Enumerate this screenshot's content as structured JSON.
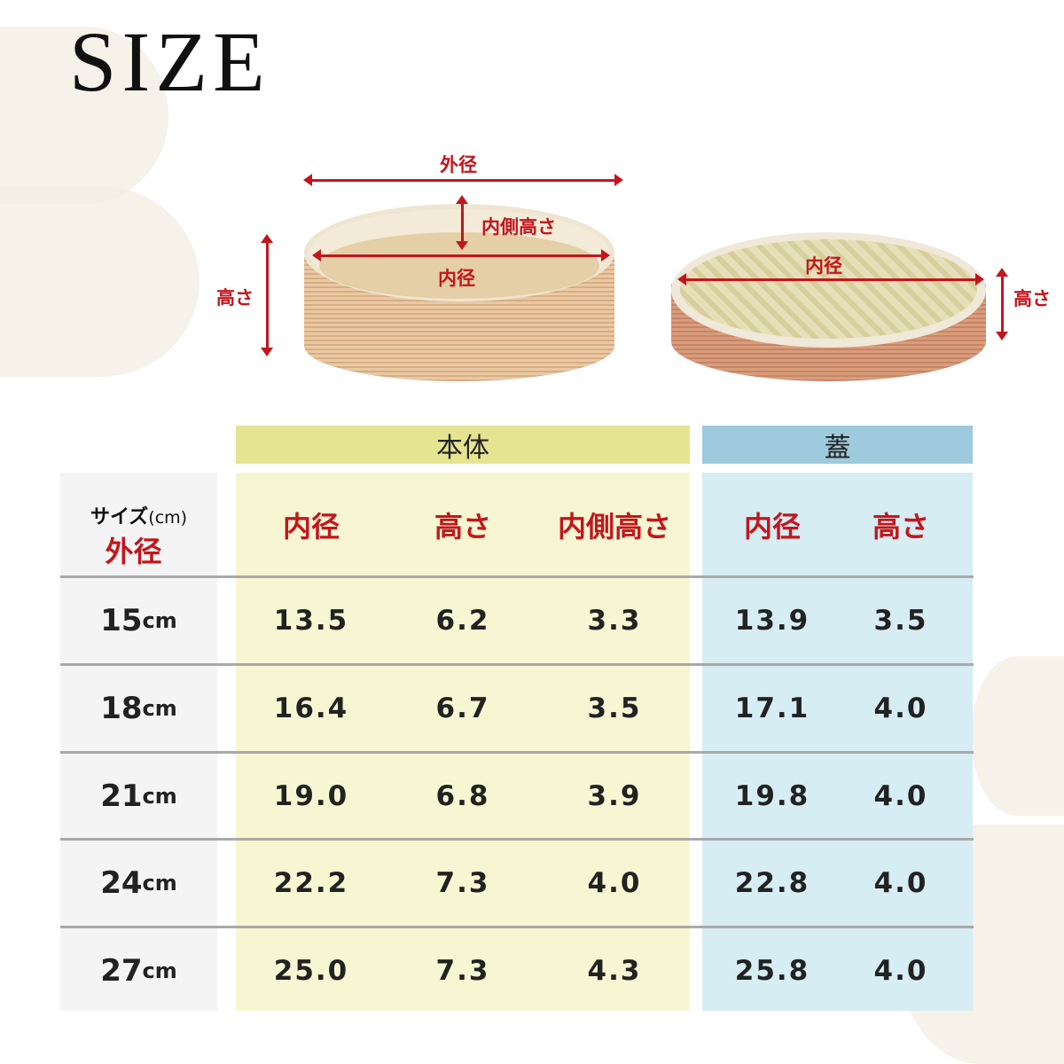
{
  "title": "SIZE",
  "diagram": {
    "body_labels": {
      "outer_diameter": "外径",
      "inner_height": "内側高さ",
      "inner_diameter": "内径",
      "height": "高さ"
    },
    "lid_labels": {
      "inner_diameter": "内径",
      "height": "高さ"
    },
    "accent_color": "#c3161c"
  },
  "table": {
    "group_body": "本体",
    "group_lid": "蓋",
    "size_header_line1": "サイズ",
    "size_header_unit": "(cm)",
    "size_header_line2": "外径",
    "body_columns": [
      "内径",
      "高さ",
      "内側高さ"
    ],
    "lid_columns": [
      "内径",
      "高さ"
    ],
    "unit": "cm",
    "rows": [
      {
        "size": "15",
        "body": [
          "13.5",
          "6.2",
          "3.3"
        ],
        "lid": [
          "13.9",
          "3.5"
        ]
      },
      {
        "size": "18",
        "body": [
          "16.4",
          "6.7",
          "3.5"
        ],
        "lid": [
          "17.1",
          "4.0"
        ]
      },
      {
        "size": "21",
        "body": [
          "19.0",
          "6.8",
          "3.9"
        ],
        "lid": [
          "19.8",
          "4.0"
        ]
      },
      {
        "size": "24",
        "body": [
          "22.2",
          "7.3",
          "4.0"
        ],
        "lid": [
          "22.8",
          "4.0"
        ]
      },
      {
        "size": "27",
        "body": [
          "25.0",
          "7.3",
          "4.3"
        ],
        "lid": [
          "25.8",
          "4.0"
        ]
      }
    ],
    "colors": {
      "body_band": "#e5e491",
      "body_bg": "#f6f6d2",
      "lid_band": "#9fc9dc",
      "lid_bg": "#d6edf4",
      "size_bg": "#f4f4f4"
    }
  }
}
